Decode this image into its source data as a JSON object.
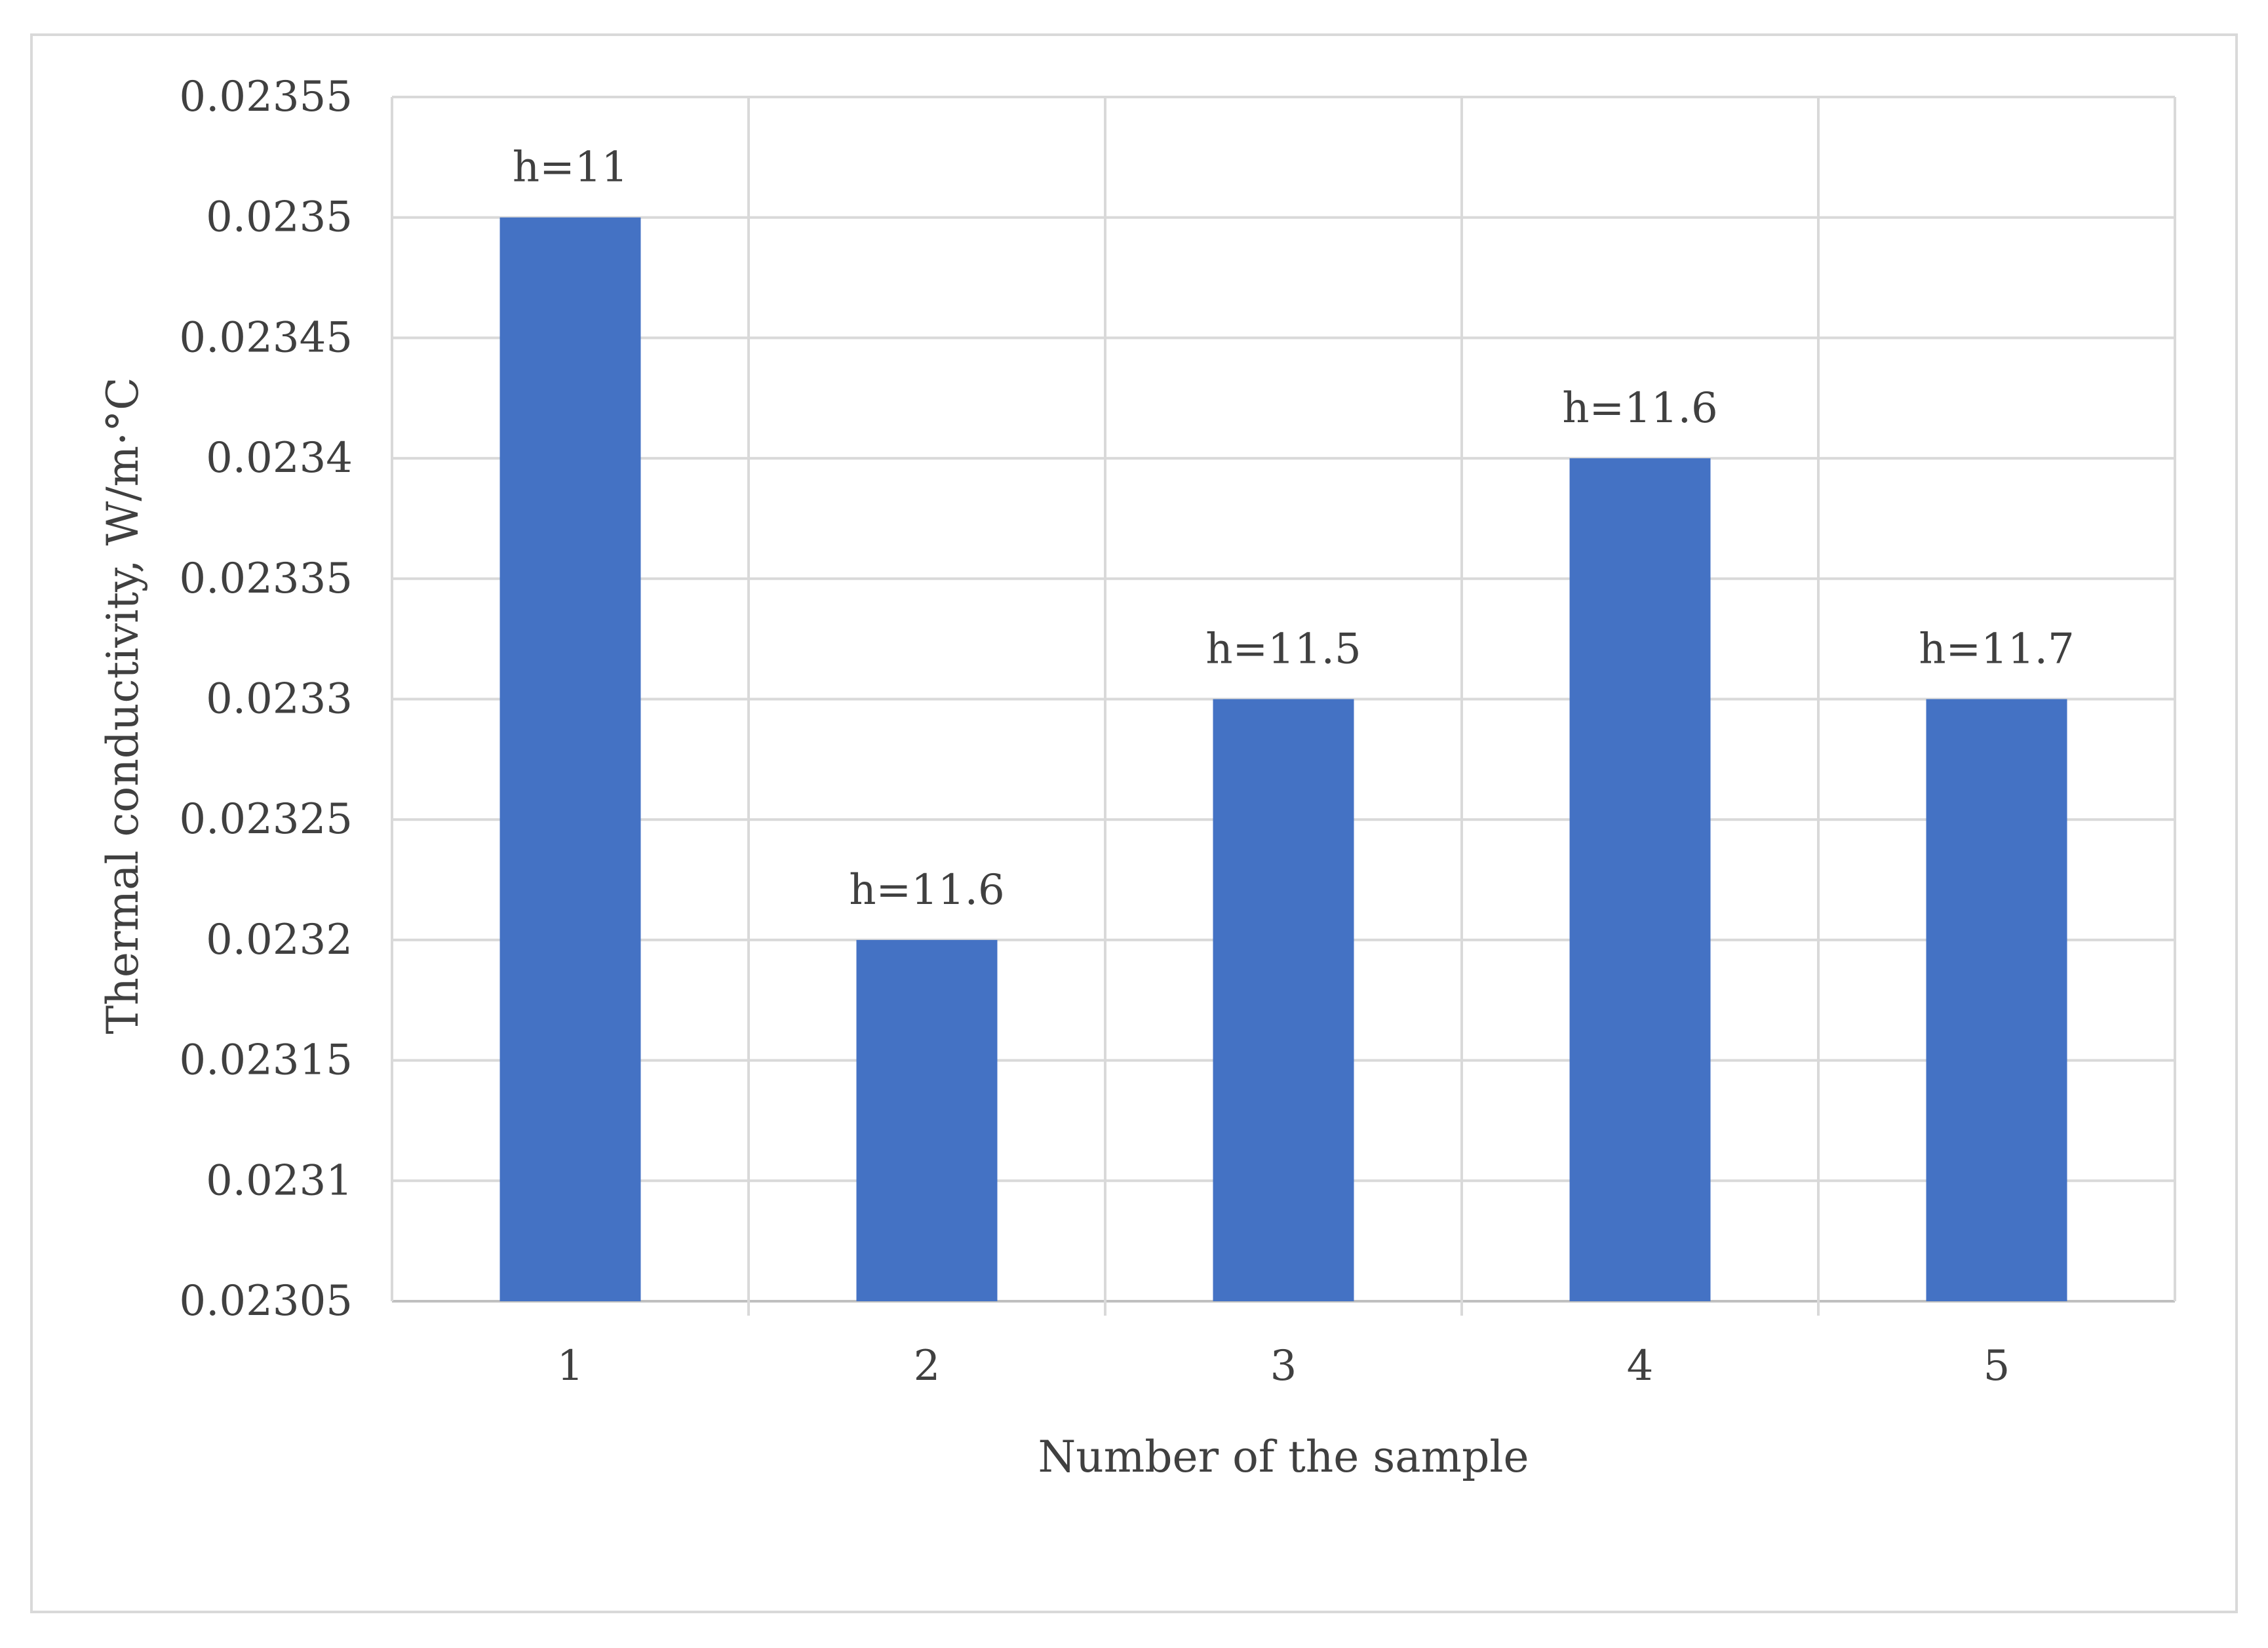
{
  "chart_data": {
    "type": "bar",
    "title": "",
    "xlabel": "Number of the sample",
    "ylabel": "Thermal conductivity,  W/m·°C",
    "categories": [
      "1",
      "2",
      "3",
      "4",
      "5"
    ],
    "values": [
      0.0235,
      0.0232,
      0.0233,
      0.0234,
      0.0233
    ],
    "data_labels": [
      "h=11",
      "h=11.6",
      "h=11.5",
      "h=11.6",
      "h=11.7"
    ],
    "ylim": [
      0.02305,
      0.02355
    ],
    "yticks": [
      0.02305,
      0.0231,
      0.02315,
      0.0232,
      0.02325,
      0.0233,
      0.02335,
      0.0234,
      0.02345,
      0.0235,
      0.02355
    ],
    "ytick_labels": [
      "0.02305",
      "0.0231",
      "0.02315",
      "0.0232",
      "0.02325",
      "0.0233",
      "0.02335",
      "0.0234",
      "0.02345",
      "0.0235",
      "0.02355"
    ],
    "grid": true,
    "legend": "none",
    "colors": {
      "bar": "#4472c4",
      "grid": "#d9d9d9",
      "text": "#404040"
    }
  }
}
